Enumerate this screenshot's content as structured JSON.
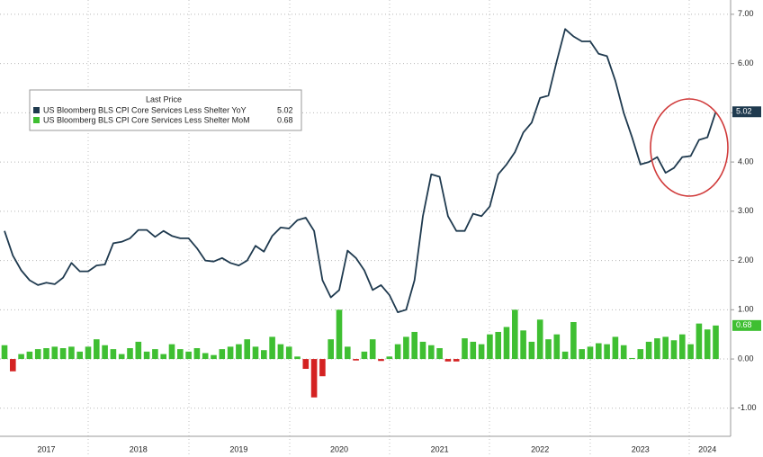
{
  "chart_data": {
    "type": "line_bar",
    "categories": [
      null,
      null,
      null,
      null,
      null,
      "2017",
      null,
      null,
      null,
      null,
      null,
      null,
      null,
      null,
      null,
      null,
      "2018",
      null,
      null,
      null,
      null,
      null,
      null,
      null,
      null,
      null,
      null,
      null,
      "2019",
      null,
      null,
      null,
      null,
      null,
      null,
      null,
      null,
      null,
      null,
      null,
      "2020",
      null,
      null,
      null,
      null,
      null,
      null,
      null,
      null,
      null,
      null,
      null,
      "2021",
      null,
      null,
      null,
      null,
      null,
      null,
      null,
      null,
      null,
      null,
      null,
      "2022",
      null,
      null,
      null,
      null,
      null,
      null,
      null,
      null,
      null,
      null,
      null,
      "2023",
      null,
      null,
      null,
      null,
      null,
      null,
      null,
      "2024",
      null
    ],
    "legend_title": "Last Price",
    "series": [
      {
        "name": "US Bloomberg BLS CPI Core Services Less Shelter YoY",
        "type": "line",
        "color": "#1f3a4f",
        "values": [
          2.6,
          2.1,
          1.8,
          1.6,
          1.5,
          1.55,
          1.52,
          1.65,
          1.95,
          1.78,
          1.78,
          1.9,
          1.92,
          2.35,
          2.38,
          2.45,
          2.62,
          2.62,
          2.48,
          2.6,
          2.5,
          2.45,
          2.45,
          2.25,
          2.0,
          1.98,
          2.05,
          1.95,
          1.9,
          2.0,
          2.3,
          2.18,
          2.5,
          2.67,
          2.65,
          2.82,
          2.87,
          2.6,
          1.6,
          1.25,
          1.4,
          2.2,
          2.05,
          1.8,
          1.4,
          1.5,
          1.3,
          0.95,
          1.0,
          1.6,
          2.9,
          3.75,
          3.7,
          2.9,
          2.6,
          2.6,
          2.95,
          2.9,
          3.1,
          3.75,
          3.95,
          4.2,
          4.6,
          4.8,
          5.3,
          5.35,
          6.05,
          6.7,
          6.55,
          6.45,
          6.45,
          6.2,
          6.15,
          5.65,
          5.0,
          4.5,
          3.95,
          4.0,
          4.1,
          3.78,
          3.88,
          4.1,
          4.12,
          4.45,
          4.5,
          5.02
        ]
      },
      {
        "name": "US Bloomberg BLS CPI Core Services Less Shelter MoM",
        "type": "bar",
        "color": "#3fbf32",
        "negative_color": "#d42222",
        "values": [
          0.28,
          -0.25,
          0.1,
          0.15,
          0.2,
          0.22,
          0.25,
          0.22,
          0.25,
          0.15,
          0.25,
          0.4,
          0.28,
          0.2,
          0.1,
          0.22,
          0.35,
          0.15,
          0.2,
          0.1,
          0.3,
          0.2,
          0.15,
          0.22,
          0.12,
          0.08,
          0.2,
          0.25,
          0.3,
          0.4,
          0.25,
          0.18,
          0.45,
          0.3,
          0.25,
          0.05,
          -0.2,
          -0.78,
          -0.35,
          0.4,
          1.0,
          0.25,
          -0.03,
          0.15,
          0.4,
          -0.04,
          0.05,
          0.3,
          0.45,
          0.55,
          0.35,
          0.28,
          0.22,
          -0.05,
          -0.05,
          0.42,
          0.35,
          0.3,
          0.5,
          0.55,
          0.65,
          1.0,
          0.58,
          0.35,
          0.8,
          0.4,
          0.5,
          0.15,
          0.75,
          0.2,
          0.25,
          0.32,
          0.3,
          0.45,
          0.28,
          0.02,
          0.2,
          0.35,
          0.42,
          0.45,
          0.38,
          0.5,
          0.3,
          0.72,
          0.6,
          0.68
        ]
      }
    ],
    "ylim": [
      -1.57,
      7.29
    ],
    "yticks": [
      {
        "value": -1,
        "label": "-1.00"
      },
      {
        "value": 0,
        "label": "0.00"
      },
      {
        "value": 1,
        "label": "1.00"
      },
      {
        "value": 2,
        "label": "2.00"
      },
      {
        "value": 3,
        "label": "3.00"
      },
      {
        "value": 4,
        "label": "4.00"
      },
      {
        "value": 5,
        "label": "5.00"
      },
      {
        "value": 6,
        "label": "6.00"
      },
      {
        "value": 7,
        "label": "7.00"
      }
    ],
    "grid": true
  }
}
